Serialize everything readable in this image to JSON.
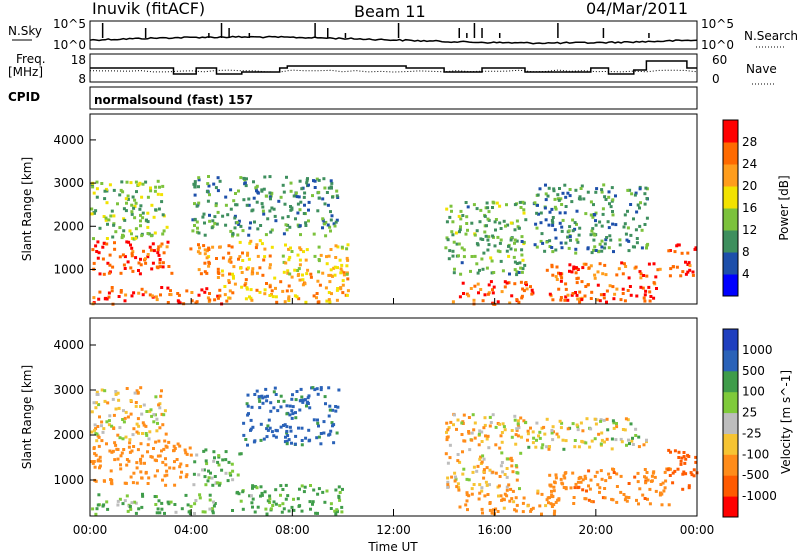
{
  "header": {
    "station": "Inuvik (fitACF)",
    "beam": "Beam 11",
    "date": "04/Mar/2011"
  },
  "noise_panel": {
    "left_label": "N.Sky",
    "right_label": "N.Search",
    "left_ticks": [
      "10^5",
      "10^0"
    ],
    "right_ticks": [
      "10^5",
      "10^0"
    ]
  },
  "freq_panel": {
    "left_label_1": "Freq.",
    "left_label_2": "[MHz]",
    "right_label": "Nave",
    "left_ticks": [
      "18",
      "8"
    ],
    "right_ticks": [
      "60",
      "0"
    ]
  },
  "cpid": {
    "label": "CPID",
    "mode": "normalsound (fast) 157"
  },
  "colors": {
    "power_scale": [
      "#0000ff",
      "#1d4faa",
      "#3e8f5e",
      "#7cc23c",
      "#f2e200",
      "#ff9d1c",
      "#ff6a00",
      "#ff0000"
    ],
    "velocity_scale": [
      "#ff0000",
      "#ff5a00",
      "#ff8c1a",
      "#f6c433",
      "#bdbdbd",
      "#7fca3a",
      "#3f9c4a",
      "#2a62b8",
      "#1f3fbf"
    ]
  },
  "chart_data": [
    {
      "type": "heatmap",
      "name": "power",
      "xlabel": "",
      "ylabel": "Slant Range [km]",
      "xlim_hours": [
        0,
        24
      ],
      "ylim": [
        200,
        4600
      ],
      "yticks": [
        1000,
        2000,
        3000,
        4000
      ],
      "colorbar": {
        "label": "Power [dB]",
        "range": [
          0,
          32
        ],
        "ticks": [
          "4",
          "8",
          "12",
          "16",
          "20",
          "24",
          "28"
        ]
      },
      "regions": [
        {
          "x": [
            0.0,
            3.3
          ],
          "y": [
            900,
            1700
          ],
          "value": 28
        },
        {
          "x": [
            0.0,
            5.2
          ],
          "y": [
            200,
            600
          ],
          "value": 26
        },
        {
          "x": [
            0.0,
            3.0
          ],
          "y": [
            1700,
            3100
          ],
          "value": 14
        },
        {
          "x": [
            3.8,
            5.7
          ],
          "y": [
            900,
            1600
          ],
          "value": 24
        },
        {
          "x": [
            5.8,
            7.2
          ],
          "y": [
            1000,
            1700
          ],
          "value": 22
        },
        {
          "x": [
            4.0,
            9.8
          ],
          "y": [
            1800,
            3200
          ],
          "value": 10
        },
        {
          "x": [
            5.0,
            10.2
          ],
          "y": [
            250,
            1000
          ],
          "value": 22
        },
        {
          "x": [
            7.5,
            10.2
          ],
          "y": [
            900,
            1600
          ],
          "value": 18
        },
        {
          "x": [
            14.3,
            17.5
          ],
          "y": [
            200,
            750
          ],
          "value": 26
        },
        {
          "x": [
            14.0,
            17.2
          ],
          "y": [
            900,
            2600
          ],
          "value": 12
        },
        {
          "x": [
            18.0,
            22.5
          ],
          "y": [
            250,
            1200
          ],
          "value": 27
        },
        {
          "x": [
            17.5,
            22.0
          ],
          "y": [
            1400,
            3000
          ],
          "value": 10
        },
        {
          "x": [
            22.8,
            24.0
          ],
          "y": [
            850,
            1600
          ],
          "value": 28
        }
      ]
    },
    {
      "type": "heatmap",
      "name": "velocity",
      "xlabel": "Time UT",
      "ylabel": "Slant Range [km]",
      "xlim_hours": [
        0,
        24
      ],
      "ylim": [
        200,
        4600
      ],
      "yticks": [
        1000,
        2000,
        3000,
        4000
      ],
      "xticks": [
        "00:00",
        "04:00",
        "08:00",
        "12:00",
        "16:00",
        "20:00",
        "00:00"
      ],
      "colorbar": {
        "label": "Velocity [m s^-1]",
        "range": [
          -1250,
          1250
        ],
        "ticks": [
          "1000",
          "500",
          "100",
          "25",
          "-25",
          "-100",
          "-500",
          "-1000"
        ]
      },
      "regions": [
        {
          "x": [
            0.0,
            4.0
          ],
          "y": [
            900,
            1900
          ],
          "value": -300
        },
        {
          "x": [
            0.0,
            3.0
          ],
          "y": [
            1900,
            3100
          ],
          "value": -60
        },
        {
          "x": [
            0.0,
            5.0
          ],
          "y": [
            250,
            700
          ],
          "value": 120
        },
        {
          "x": [
            4.0,
            6.0
          ],
          "y": [
            900,
            1700
          ],
          "value": 120
        },
        {
          "x": [
            6.0,
            9.8
          ],
          "y": [
            1800,
            3100
          ],
          "value": 600
        },
        {
          "x": [
            5.5,
            10.0
          ],
          "y": [
            250,
            900
          ],
          "value": 150
        },
        {
          "x": [
            14.0,
            17.0
          ],
          "y": [
            800,
            2500
          ],
          "value": -80
        },
        {
          "x": [
            14.5,
            18.5
          ],
          "y": [
            250,
            800
          ],
          "value": -200
        },
        {
          "x": [
            17.0,
            22.0
          ],
          "y": [
            1700,
            2400
          ],
          "value": 0
        },
        {
          "x": [
            18.0,
            23.0
          ],
          "y": [
            450,
            1300
          ],
          "value": -400
        },
        {
          "x": [
            22.8,
            24.0
          ],
          "y": [
            800,
            1700
          ],
          "value": -700
        }
      ]
    }
  ]
}
